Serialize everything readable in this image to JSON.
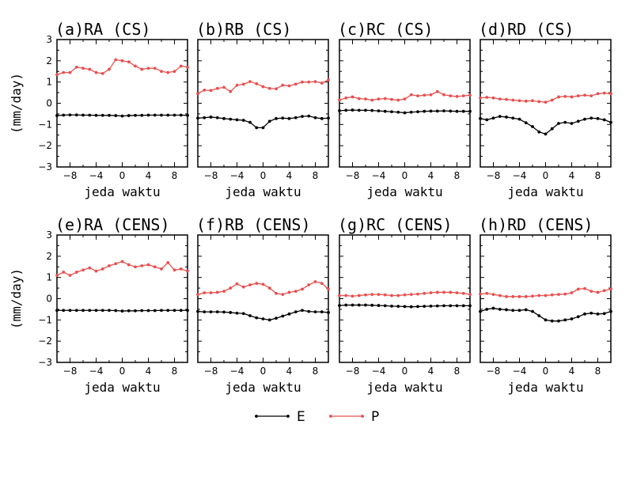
{
  "chart_data": [
    {
      "type": "line",
      "title": "(a)RA (CS)",
      "xlabel": "jeda waktu",
      "ylabel": "(mm/day)",
      "xlim": [
        -10,
        10
      ],
      "ylim": [
        -3,
        3
      ],
      "x": [
        -10,
        -9,
        -8,
        -7,
        -6,
        -5,
        -4,
        -3,
        -2,
        -1,
        0,
        1,
        2,
        3,
        4,
        5,
        6,
        7,
        8,
        9,
        10
      ],
      "xticks": [
        -8,
        -4,
        0,
        4,
        8
      ],
      "yticks": [
        -3,
        -2,
        -1,
        0,
        1,
        2,
        3
      ],
      "series": [
        {
          "name": "E",
          "color": "#000000",
          "values": [
            -0.58,
            -0.56,
            -0.55,
            -0.55,
            -0.56,
            -0.56,
            -0.57,
            -0.57,
            -0.57,
            -0.58,
            -0.6,
            -0.58,
            -0.57,
            -0.57,
            -0.56,
            -0.56,
            -0.56,
            -0.56,
            -0.56,
            -0.56,
            -0.57
          ]
        },
        {
          "name": "P",
          "color": "#e8504f",
          "values": [
            1.35,
            1.45,
            1.45,
            1.7,
            1.65,
            1.6,
            1.45,
            1.4,
            1.6,
            2.05,
            2.0,
            1.95,
            1.75,
            1.6,
            1.65,
            1.65,
            1.5,
            1.45,
            1.5,
            1.75,
            1.7
          ]
        }
      ]
    },
    {
      "type": "line",
      "title": "(b)RB (CS)",
      "xlabel": "jeda waktu",
      "ylabel": "",
      "xlim": [
        -10,
        10
      ],
      "ylim": [
        -3,
        3
      ],
      "x": [
        -10,
        -9,
        -8,
        -7,
        -6,
        -5,
        -4,
        -3,
        -2,
        -1,
        0,
        1,
        2,
        3,
        4,
        5,
        6,
        7,
        8,
        9,
        10
      ],
      "xticks": [
        -8,
        -4,
        0,
        4,
        8
      ],
      "yticks": [
        -3,
        -2,
        -1,
        0,
        1,
        2,
        3
      ],
      "series": [
        {
          "name": "E",
          "color": "#000000",
          "values": [
            -0.7,
            -0.68,
            -0.65,
            -0.68,
            -0.72,
            -0.75,
            -0.78,
            -0.8,
            -0.9,
            -1.15,
            -1.15,
            -0.85,
            -0.72,
            -0.7,
            -0.72,
            -0.68,
            -0.62,
            -0.6,
            -0.68,
            -0.72,
            -0.7
          ]
        },
        {
          "name": "P",
          "color": "#e8504f",
          "values": [
            0.45,
            0.62,
            0.6,
            0.7,
            0.75,
            0.55,
            0.85,
            0.9,
            1.02,
            0.92,
            0.78,
            0.7,
            0.68,
            0.85,
            0.82,
            0.9,
            1.0,
            1.0,
            1.02,
            0.95,
            1.1
          ]
        }
      ]
    },
    {
      "type": "line",
      "title": "(c)RC (CS)",
      "xlabel": "jeda waktu",
      "ylabel": "",
      "xlim": [
        -10,
        10
      ],
      "ylim": [
        -3,
        3
      ],
      "x": [
        -10,
        -9,
        -8,
        -7,
        -6,
        -5,
        -4,
        -3,
        -2,
        -1,
        0,
        1,
        2,
        3,
        4,
        5,
        6,
        7,
        8,
        9,
        10
      ],
      "xticks": [
        -8,
        -4,
        0,
        4,
        8
      ],
      "yticks": [
        -3,
        -2,
        -1,
        0,
        1,
        2,
        3
      ],
      "series": [
        {
          "name": "E",
          "color": "#000000",
          "values": [
            -0.35,
            -0.33,
            -0.32,
            -0.33,
            -0.33,
            -0.34,
            -0.36,
            -0.38,
            -0.4,
            -0.42,
            -0.45,
            -0.42,
            -0.4,
            -0.38,
            -0.37,
            -0.37,
            -0.36,
            -0.37,
            -0.38,
            -0.38,
            -0.38
          ]
        },
        {
          "name": "P",
          "color": "#e8504f",
          "values": [
            0.15,
            0.25,
            0.3,
            0.22,
            0.2,
            0.15,
            0.2,
            0.22,
            0.18,
            0.15,
            0.2,
            0.4,
            0.35,
            0.38,
            0.4,
            0.55,
            0.4,
            0.35,
            0.32,
            0.35,
            0.38
          ]
        }
      ]
    },
    {
      "type": "line",
      "title": "(d)RD (CS)",
      "xlabel": "jeda waktu",
      "ylabel": "",
      "xlim": [
        -10,
        10
      ],
      "ylim": [
        -3,
        3
      ],
      "x": [
        -10,
        -9,
        -8,
        -7,
        -6,
        -5,
        -4,
        -3,
        -2,
        -1,
        0,
        1,
        2,
        3,
        4,
        5,
        6,
        7,
        8,
        9,
        10
      ],
      "xticks": [
        -8,
        -4,
        0,
        4,
        8
      ],
      "yticks": [
        -3,
        -2,
        -1,
        0,
        1,
        2,
        3
      ],
      "series": [
        {
          "name": "E",
          "color": "#000000",
          "values": [
            -0.72,
            -0.78,
            -0.7,
            -0.62,
            -0.65,
            -0.7,
            -0.75,
            -0.92,
            -1.1,
            -1.35,
            -1.45,
            -1.2,
            -0.95,
            -0.9,
            -0.95,
            -0.85,
            -0.75,
            -0.7,
            -0.72,
            -0.78,
            -0.9
          ]
        },
        {
          "name": "P",
          "color": "#e8504f",
          "values": [
            0.25,
            0.28,
            0.25,
            0.2,
            0.18,
            0.15,
            0.12,
            0.1,
            0.12,
            0.08,
            0.05,
            0.15,
            0.3,
            0.32,
            0.3,
            0.35,
            0.38,
            0.35,
            0.45,
            0.48,
            0.45
          ]
        }
      ]
    },
    {
      "type": "line",
      "title": "(e)RA (CENS)",
      "xlabel": "jeda waktu",
      "ylabel": "(mm/day)",
      "xlim": [
        -10,
        10
      ],
      "ylim": [
        -3,
        3
      ],
      "x": [
        -10,
        -9,
        -8,
        -7,
        -6,
        -5,
        -4,
        -3,
        -2,
        -1,
        0,
        1,
        2,
        3,
        4,
        5,
        6,
        7,
        8,
        9,
        10
      ],
      "xticks": [
        -8,
        -4,
        0,
        4,
        8
      ],
      "yticks": [
        -3,
        -2,
        -1,
        0,
        1,
        2,
        3
      ],
      "series": [
        {
          "name": "E",
          "color": "#000000",
          "values": [
            -0.55,
            -0.55,
            -0.55,
            -0.55,
            -0.55,
            -0.55,
            -0.55,
            -0.55,
            -0.55,
            -0.56,
            -0.58,
            -0.57,
            -0.57,
            -0.56,
            -0.56,
            -0.56,
            -0.55,
            -0.55,
            -0.55,
            -0.55,
            -0.55
          ]
        },
        {
          "name": "P",
          "color": "#e8504f",
          "values": [
            1.1,
            1.25,
            1.1,
            1.25,
            1.35,
            1.45,
            1.3,
            1.4,
            1.55,
            1.65,
            1.75,
            1.6,
            1.5,
            1.55,
            1.6,
            1.5,
            1.4,
            1.7,
            1.35,
            1.4,
            1.3
          ]
        }
      ]
    },
    {
      "type": "line",
      "title": "(f)RB (CENS)",
      "xlabel": "jeda waktu",
      "ylabel": "",
      "xlim": [
        -10,
        10
      ],
      "ylim": [
        -3,
        3
      ],
      "x": [
        -10,
        -9,
        -8,
        -7,
        -6,
        -5,
        -4,
        -3,
        -2,
        -1,
        0,
        1,
        2,
        3,
        4,
        5,
        6,
        7,
        8,
        9,
        10
      ],
      "xticks": [
        -8,
        -4,
        0,
        4,
        8
      ],
      "yticks": [
        -3,
        -2,
        -1,
        0,
        1,
        2,
        3
      ],
      "series": [
        {
          "name": "E",
          "color": "#000000",
          "values": [
            -0.6,
            -0.62,
            -0.62,
            -0.62,
            -0.63,
            -0.65,
            -0.68,
            -0.7,
            -0.8,
            -0.9,
            -0.95,
            -1.0,
            -0.92,
            -0.82,
            -0.72,
            -0.62,
            -0.55,
            -0.6,
            -0.62,
            -0.62,
            -0.65
          ]
        },
        {
          "name": "P",
          "color": "#e8504f",
          "values": [
            0.2,
            0.28,
            0.28,
            0.3,
            0.35,
            0.5,
            0.7,
            0.55,
            0.65,
            0.72,
            0.68,
            0.5,
            0.25,
            0.2,
            0.3,
            0.35,
            0.45,
            0.65,
            0.8,
            0.72,
            0.45
          ]
        }
      ]
    },
    {
      "type": "line",
      "title": "(g)RC (CENS)",
      "xlabel": "jeda waktu",
      "ylabel": "",
      "xlim": [
        -10,
        10
      ],
      "ylim": [
        -3,
        3
      ],
      "x": [
        -10,
        -9,
        -8,
        -7,
        -6,
        -5,
        -4,
        -3,
        -2,
        -1,
        0,
        1,
        2,
        3,
        4,
        5,
        6,
        7,
        8,
        9,
        10
      ],
      "xticks": [
        -8,
        -4,
        0,
        4,
        8
      ],
      "yticks": [
        -3,
        -2,
        -1,
        0,
        1,
        2,
        3
      ],
      "series": [
        {
          "name": "E",
          "color": "#000000",
          "values": [
            -0.32,
            -0.3,
            -0.3,
            -0.3,
            -0.3,
            -0.31,
            -0.32,
            -0.33,
            -0.35,
            -0.36,
            -0.37,
            -0.38,
            -0.37,
            -0.36,
            -0.35,
            -0.34,
            -0.33,
            -0.33,
            -0.33,
            -0.33,
            -0.33
          ]
        },
        {
          "name": "P",
          "color": "#e8504f",
          "values": [
            0.15,
            0.15,
            0.12,
            0.15,
            0.18,
            0.2,
            0.2,
            0.18,
            0.15,
            0.15,
            0.18,
            0.2,
            0.22,
            0.25,
            0.28,
            0.3,
            0.3,
            0.3,
            0.28,
            0.25,
            0.2
          ]
        }
      ]
    },
    {
      "type": "line",
      "title": "(h)RD (CENS)",
      "xlabel": "jeda waktu",
      "ylabel": "",
      "xlim": [
        -10,
        10
      ],
      "ylim": [
        -3,
        3
      ],
      "x": [
        -10,
        -9,
        -8,
        -7,
        -6,
        -5,
        -4,
        -3,
        -2,
        -1,
        0,
        1,
        2,
        3,
        4,
        5,
        6,
        7,
        8,
        9,
        10
      ],
      "xticks": [
        -8,
        -4,
        0,
        4,
        8
      ],
      "yticks": [
        -3,
        -2,
        -1,
        0,
        1,
        2,
        3
      ],
      "series": [
        {
          "name": "E",
          "color": "#000000",
          "values": [
            -0.6,
            -0.5,
            -0.45,
            -0.5,
            -0.52,
            -0.55,
            -0.55,
            -0.52,
            -0.6,
            -0.8,
            -1.0,
            -1.05,
            -1.05,
            -1.0,
            -0.95,
            -0.85,
            -0.72,
            -0.68,
            -0.72,
            -0.7,
            -0.6
          ]
        },
        {
          "name": "P",
          "color": "#e8504f",
          "values": [
            0.22,
            0.25,
            0.2,
            0.15,
            0.1,
            0.1,
            0.1,
            0.1,
            0.12,
            0.15,
            0.15,
            0.18,
            0.2,
            0.22,
            0.28,
            0.45,
            0.48,
            0.35,
            0.3,
            0.38,
            0.45
          ]
        }
      ]
    }
  ],
  "legend": [
    {
      "label": "E",
      "color": "#000000"
    },
    {
      "label": "P",
      "color": "#e8504f"
    }
  ]
}
